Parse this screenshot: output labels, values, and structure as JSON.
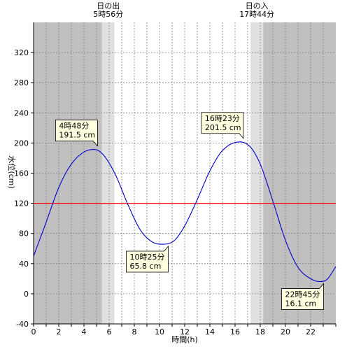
{
  "chart_data": {
    "type": "line",
    "xlabel": "時間(h)",
    "ylabel": "水位(cm)",
    "xlim": [
      0,
      24
    ],
    "ylim": [
      -40,
      360
    ],
    "x_ticks": [
      0,
      2,
      4,
      6,
      8,
      10,
      12,
      14,
      16,
      18,
      20,
      22
    ],
    "y_ticks": [
      -40,
      0,
      40,
      80,
      120,
      160,
      200,
      240,
      280,
      320
    ],
    "grid": true,
    "reference_line": {
      "value": 120,
      "color": "#ff0000"
    },
    "sunrise": {
      "title": "日の出",
      "time_label": "5時56分",
      "hour": 5.933
    },
    "sunset": {
      "title": "日の入",
      "time_label": "17時44分",
      "hour": 17.733
    },
    "twilight_hours": 0.5,
    "colors": {
      "night": "#c0c0c0",
      "twilight": "#e0e0e0",
      "day": "#ffffff",
      "tide_line": "#0000cc",
      "callout_bg": "#ffffe0"
    },
    "series": [
      {
        "x": [
          0,
          1,
          2,
          3,
          4,
          4.8,
          5.5,
          6.5,
          7.5,
          8.5,
          9.5,
          10.42,
          11.2,
          12,
          13,
          14,
          15,
          16.38,
          17.2,
          18,
          19,
          20,
          21,
          22,
          22.75,
          23.3,
          24
        ],
        "y": [
          50,
          95,
          141,
          172,
          188,
          191.5,
          185,
          158,
          118,
          84,
          68,
          65.8,
          71,
          90,
          125,
          163,
          190,
          201.5,
          195,
          172,
          123,
          71,
          35,
          20,
          16.1,
          19,
          36
        ]
      }
    ],
    "annotations": [
      {
        "time": "4時48分",
        "value": "191.5 cm",
        "x": 4.8,
        "y": 191.5,
        "placement": "above"
      },
      {
        "time": "10時25分",
        "value": "65.8 cm",
        "x": 10.42,
        "y": 65.8,
        "placement": "below"
      },
      {
        "time": "16時23分",
        "value": "201.5 cm",
        "x": 16.38,
        "y": 201.5,
        "placement": "above"
      },
      {
        "time": "22時45分",
        "value": "16.1 cm",
        "x": 22.75,
        "y": 16.1,
        "placement": "below"
      }
    ]
  }
}
